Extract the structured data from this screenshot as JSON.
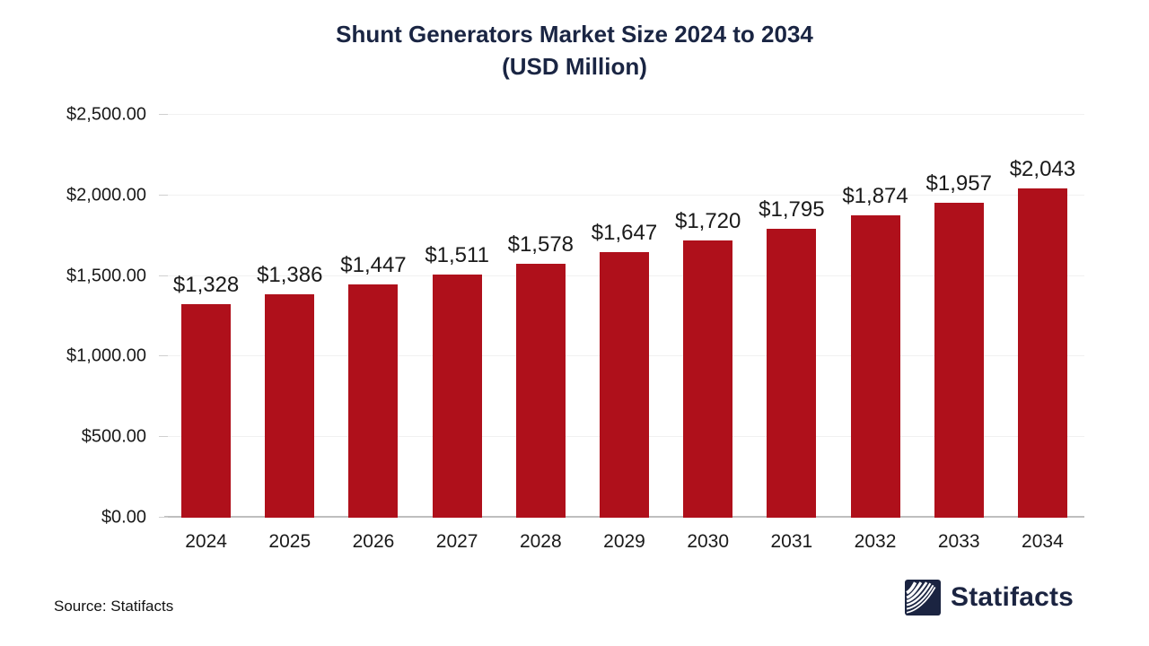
{
  "title": {
    "line1": "Shunt Generators Market Size 2024 to 2034",
    "line2": "(USD Million)"
  },
  "source": {
    "label": "Source: Statifacts"
  },
  "brand": {
    "name": "Statifacts"
  },
  "colors": {
    "bar": "#AF101B",
    "title": "#1A2543",
    "grid": "#F1F1F1",
    "axis_line": "#BFBFBF",
    "text": "#1A1A1A",
    "brand_navy": "#1B2441"
  },
  "chart_data": {
    "type": "bar",
    "title": "Shunt Generators Market Size 2024 to 2034 (USD Million)",
    "xlabel": "",
    "ylabel": "",
    "categories": [
      "2024",
      "2025",
      "2026",
      "2027",
      "2028",
      "2029",
      "2030",
      "2031",
      "2032",
      "2033",
      "2034"
    ],
    "values": [
      1328,
      1386,
      1447,
      1511,
      1578,
      1647,
      1720,
      1795,
      1874,
      1957,
      2043
    ],
    "data_labels": [
      "$1,328",
      "$1,386",
      "$1,447",
      "$1,511",
      "$1,578",
      "$1,647",
      "$1,720",
      "$1,795",
      "$1,874",
      "$1,957",
      "$2,043"
    ],
    "ylim": [
      0,
      2500
    ],
    "ytick_interval": 500,
    "yticks_bottom_up": [
      "$0.00",
      "$500.00",
      "$1,000.00",
      "$1,500.00",
      "$2,000.00",
      "$2,500.00"
    ],
    "grid": "horizontal",
    "legend": "none"
  }
}
